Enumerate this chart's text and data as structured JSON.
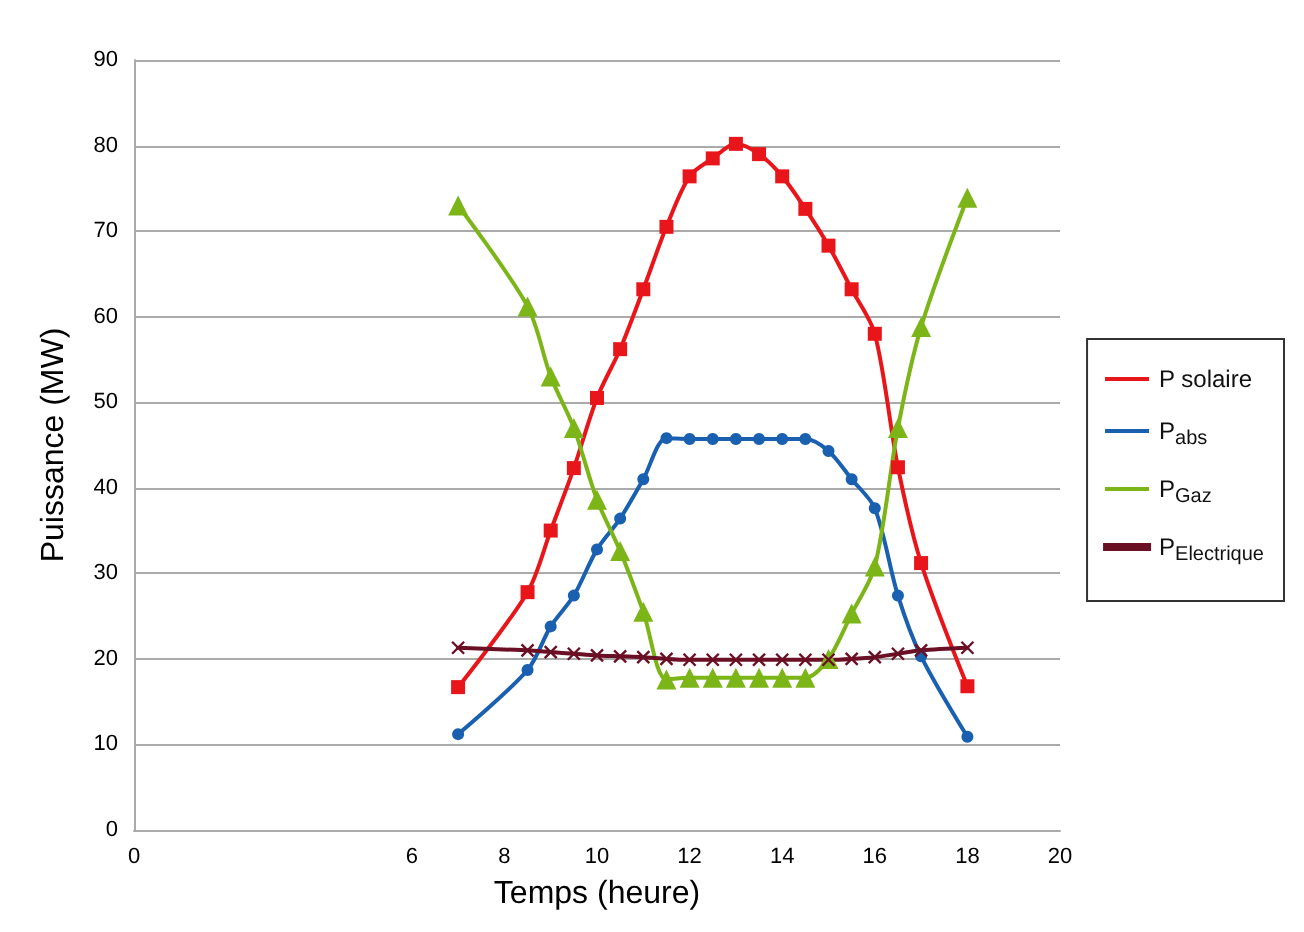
{
  "chart_data": {
    "type": "line",
    "xlabel": "Temps (heure)",
    "ylabel": "Puissance (MW)",
    "x": [
      7,
      8.5,
      9,
      9.5,
      10,
      10.5,
      11,
      11.5,
      12,
      12.5,
      13,
      13.5,
      14,
      14.5,
      15,
      15.5,
      16,
      16.5,
      17,
      18
    ],
    "xlim": [
      0,
      20
    ],
    "xticks": [
      0,
      6,
      8,
      10,
      12,
      14,
      16,
      18,
      20
    ],
    "ylim": [
      0,
      90
    ],
    "yticks": [
      0,
      10,
      20,
      30,
      40,
      50,
      60,
      70,
      80,
      90
    ],
    "grid": "y",
    "legend": "right",
    "line_style": "solid",
    "series": [
      {
        "name": "P solaire",
        "color": "#e8161b",
        "marker": "square",
        "values": [
          16.7,
          27.8,
          35,
          42.3,
          50.5,
          56.2,
          63.2,
          70.5,
          76.4,
          78.5,
          80.2,
          79,
          76.4,
          72.6,
          68.3,
          63.2,
          58,
          42.4,
          31.2,
          16.8
        ]
      },
      {
        "name": "P$_{abs}$",
        "color": "#1a60b0",
        "marker": "circle",
        "values": [
          11.2,
          18.7,
          23.8,
          27.4,
          32.8,
          36.4,
          41,
          45.8,
          45.7,
          45.7,
          45.7,
          45.7,
          45.7,
          45.7,
          44.3,
          41,
          37.6,
          27.4,
          20.3,
          10.9
        ]
      },
      {
        "name": "P$_{Gaz}$",
        "color": "#7cb518",
        "marker": "triangle",
        "values": [
          73,
          61.2,
          53,
          47,
          38.6,
          32.6,
          25.5,
          17.6,
          17.8,
          17.8,
          17.8,
          17.8,
          17.8,
          17.8,
          20,
          25.3,
          30.8,
          47,
          58.8,
          73.9
        ]
      },
      {
        "name": "P$_{Electrique}$",
        "color": "#6b0f24",
        "marker": "cross",
        "values": [
          21.3,
          21,
          20.8,
          20.6,
          20.4,
          20.3,
          20.2,
          20,
          19.9,
          19.9,
          19.9,
          19.9,
          19.9,
          19.9,
          19.9,
          20,
          20.2,
          20.6,
          21,
          21.3
        ]
      }
    ]
  }
}
